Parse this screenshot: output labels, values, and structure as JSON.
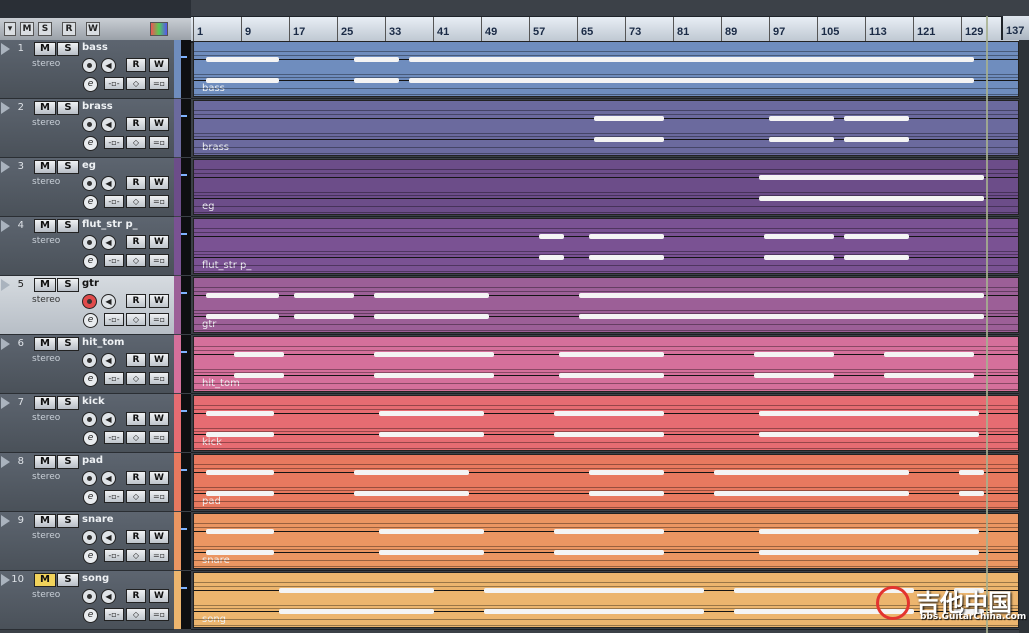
{
  "header": {
    "tool_buttons": [
      "M",
      "S",
      "R",
      "W"
    ],
    "ruler_marks": [
      "1",
      "9",
      "17",
      "25",
      "33",
      "41",
      "49",
      "57",
      "65",
      "73",
      "81",
      "89",
      "97",
      "105",
      "113",
      "121",
      "129"
    ],
    "ruler_end": "137"
  },
  "tracks": [
    {
      "number": "1",
      "name": "bass",
      "type": "stereo",
      "part_label": "bass",
      "color": "#6f8dbe",
      "mute": false,
      "record": false
    },
    {
      "number": "2",
      "name": "brass",
      "type": "stereo",
      "part_label": "brass",
      "color": "#6b6a9e",
      "mute": false,
      "record": false
    },
    {
      "number": "3",
      "name": "eg",
      "type": "stereo",
      "part_label": "eg",
      "color": "#6c4d89",
      "mute": false,
      "record": false
    },
    {
      "number": "4",
      "name": "flut_str p_",
      "type": "stereo",
      "part_label": "flut_str p_",
      "color": "#7a5293",
      "mute": false,
      "record": false
    },
    {
      "number": "5",
      "name": "gtr",
      "type": "stereo",
      "part_label": "gtr",
      "color": "#9c5f97",
      "mute": false,
      "record": true
    },
    {
      "number": "6",
      "name": "hit_tom",
      "type": "stereo",
      "part_label": "hit_tom",
      "color": "#d5709b",
      "mute": false,
      "record": false
    },
    {
      "number": "7",
      "name": "kick",
      "type": "stereo",
      "part_label": "kick",
      "color": "#e66c72",
      "mute": false,
      "record": false
    },
    {
      "number": "8",
      "name": "pad",
      "type": "stereo",
      "part_label": "pad",
      "color": "#e8795f",
      "mute": false,
      "record": false
    },
    {
      "number": "9",
      "name": "snare",
      "type": "stereo",
      "part_label": "snare",
      "color": "#eb9662",
      "mute": false,
      "record": false
    },
    {
      "number": "10",
      "name": "song",
      "type": "stereo",
      "part_label": "song",
      "color": "#ecb56e",
      "mute": true,
      "record": false
    }
  ],
  "track_buttons": {
    "mute": "M",
    "solo": "S",
    "read": "R",
    "write": "W",
    "edit": "e"
  },
  "watermark": {
    "title": "吉他中国",
    "url": "bbs.GuitarChina.com"
  }
}
